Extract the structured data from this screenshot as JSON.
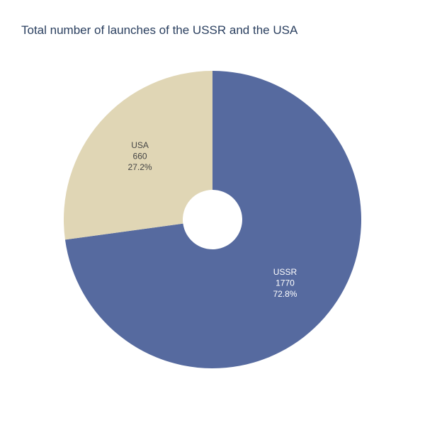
{
  "chart_data": {
    "type": "pie",
    "title": "Total number of launches of the USSR and the USA",
    "hole": true,
    "direction": "clockwise",
    "start_angle": "top",
    "slices": [
      {
        "label": "USSR",
        "value": 1770,
        "percent": "72.8%",
        "color": "#566a9f",
        "text_color": "#ffffff"
      },
      {
        "label": "USA",
        "value": 660,
        "percent": "27.2%",
        "color": "#e0d6b5",
        "text_color": "#444444"
      }
    ]
  }
}
